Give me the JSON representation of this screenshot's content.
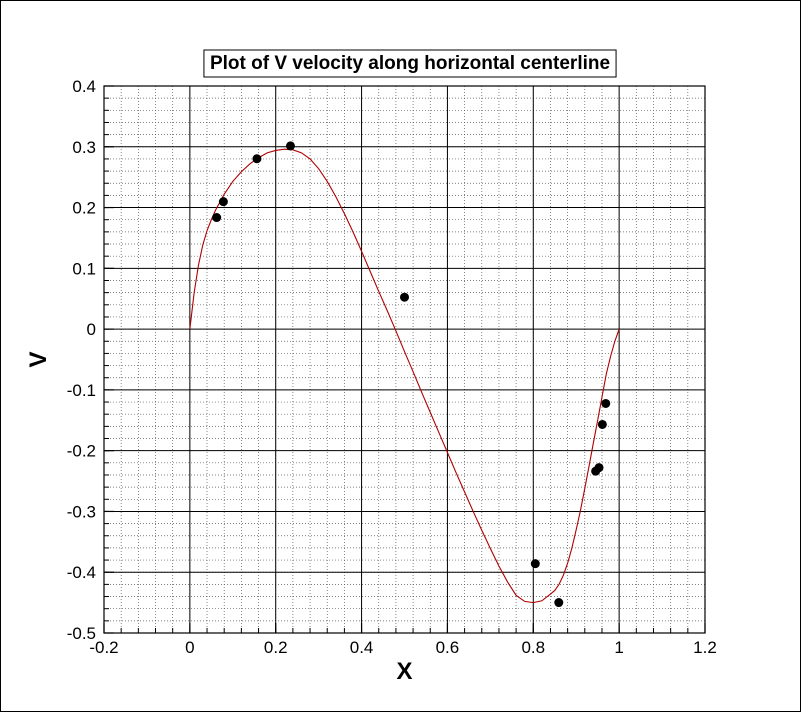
{
  "chart_data": {
    "type": "line",
    "title": "Plot of V velocity along horizontal centerline",
    "xlabel": "X",
    "ylabel": "V",
    "xlim": [
      -0.2,
      1.2
    ],
    "ylim": [
      -0.5,
      0.4
    ],
    "x_ticks": [
      "-0.2",
      "0",
      "0.2",
      "0.4",
      "0.6",
      "0.8",
      "1",
      "1.2"
    ],
    "y_ticks": [
      "0.4",
      "0.3",
      "0.2",
      "0.1",
      "0",
      "-0.1",
      "-0.2",
      "-0.3",
      "-0.4",
      "-0.5"
    ],
    "grid": "major solid, minor dotted",
    "line_color": "#b00000",
    "marker_color": "#000000",
    "series": [
      {
        "type": "line",
        "x": [
          0,
          0.01,
          0.02,
          0.03,
          0.04,
          0.05,
          0.06,
          0.08,
          0.1,
          0.12,
          0.14,
          0.16,
          0.18,
          0.2,
          0.22,
          0.24,
          0.26,
          0.28,
          0.3,
          0.32,
          0.34,
          0.36,
          0.38,
          0.4,
          0.42,
          0.44,
          0.46,
          0.48,
          0.5,
          0.52,
          0.54,
          0.56,
          0.58,
          0.6,
          0.62,
          0.64,
          0.66,
          0.68,
          0.7,
          0.72,
          0.74,
          0.76,
          0.78,
          0.8,
          0.82,
          0.84,
          0.85,
          0.86,
          0.87,
          0.88,
          0.89,
          0.9,
          0.91,
          0.92,
          0.93,
          0.94,
          0.95,
          0.96,
          0.97,
          0.98,
          0.99,
          1
        ],
        "y": [
          0,
          0.06,
          0.105,
          0.138,
          0.162,
          0.18,
          0.196,
          0.222,
          0.243,
          0.259,
          0.272,
          0.282,
          0.29,
          0.294,
          0.296,
          0.295,
          0.29,
          0.28,
          0.264,
          0.243,
          0.218,
          0.19,
          0.16,
          0.128,
          0.095,
          0.062,
          0.03,
          -0.003,
          -0.037,
          -0.07,
          -0.104,
          -0.137,
          -0.17,
          -0.203,
          -0.236,
          -0.268,
          -0.3,
          -0.331,
          -0.361,
          -0.39,
          -0.416,
          -0.438,
          -0.448,
          -0.45,
          -0.447,
          -0.436,
          -0.43,
          -0.42,
          -0.405,
          -0.385,
          -0.36,
          -0.33,
          -0.298,
          -0.262,
          -0.225,
          -0.187,
          -0.15,
          -0.112,
          -0.074,
          -0.045,
          -0.02,
          0
        ]
      },
      {
        "type": "scatter",
        "x": [
          0.0625,
          0.0781,
          0.1563,
          0.2344,
          0.5,
          0.8047,
          0.8594,
          0.9453,
          0.9531,
          0.9609,
          0.9688
        ],
        "y": [
          0.1836,
          0.2097,
          0.2803,
          0.3014,
          0.0525,
          -0.3859,
          -0.4499,
          -0.2337,
          -0.228,
          -0.1569,
          -0.1223
        ]
      }
    ]
  }
}
